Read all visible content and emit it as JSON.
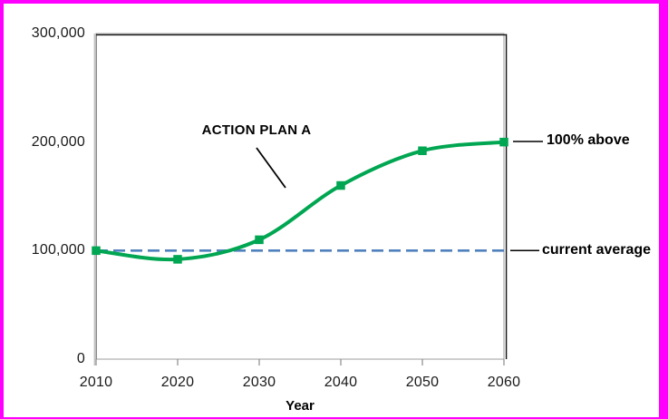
{
  "frame": {
    "border_color": "#FF00FF",
    "background_color": "#FFFFFF"
  },
  "chart_data": {
    "type": "line",
    "title": "",
    "xlabel": "Year",
    "ylabel": "",
    "x": [
      2010,
      2020,
      2030,
      2040,
      2050,
      2060
    ],
    "series": [
      {
        "name": "ACTION PLAN A",
        "values": [
          100000,
          92000,
          110000,
          160000,
          192000,
          200000
        ],
        "color": "#00A651",
        "marker": "square",
        "smooth": true
      }
    ],
    "reference_line": {
      "value": 100000,
      "label": "current average",
      "color": "#4F81BD",
      "style": "dashed"
    },
    "xlim": [
      2010,
      2060
    ],
    "ylim": [
      0,
      300000
    ],
    "x_tick_labels": [
      "2010",
      "2020",
      "2030",
      "2040",
      "2050",
      "2060"
    ],
    "y_tick_labels": [
      "0",
      "100,000",
      "200,000",
      "300,000"
    ],
    "grid": false,
    "legend_position": "none",
    "annotations": [
      {
        "text": "ACTION PLAN A",
        "target": "rising part of curve"
      },
      {
        "text": "100% above",
        "target": "2060 end point at 200,000"
      },
      {
        "text": "current average",
        "target": "dashed line at 100,000"
      }
    ]
  }
}
